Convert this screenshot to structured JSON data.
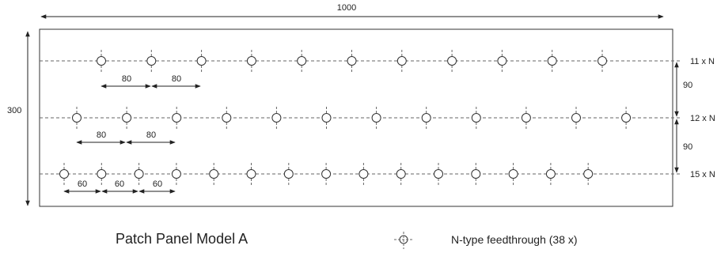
{
  "drawing": {
    "title": "Patch Panel Model A",
    "legend_label": "N-type feedthrough (38 x)",
    "legend_symbol": "feedthrough-symbol-icon",
    "overall_width": "1000",
    "overall_height": "300",
    "rows": [
      {
        "label": "11 x N",
        "count": 11
      },
      {
        "label": "12 x N",
        "count": 12
      },
      {
        "label": "15 x N",
        "count": 15
      }
    ],
    "row_gaps": [
      "90",
      "90"
    ],
    "row1_spacing": [
      "80",
      "80"
    ],
    "row2_spacing": [
      "80",
      "80"
    ],
    "row3_spacing": [
      "60",
      "60",
      "60"
    ],
    "colors": {
      "line": "#333333",
      "dashed": "#666666"
    }
  }
}
